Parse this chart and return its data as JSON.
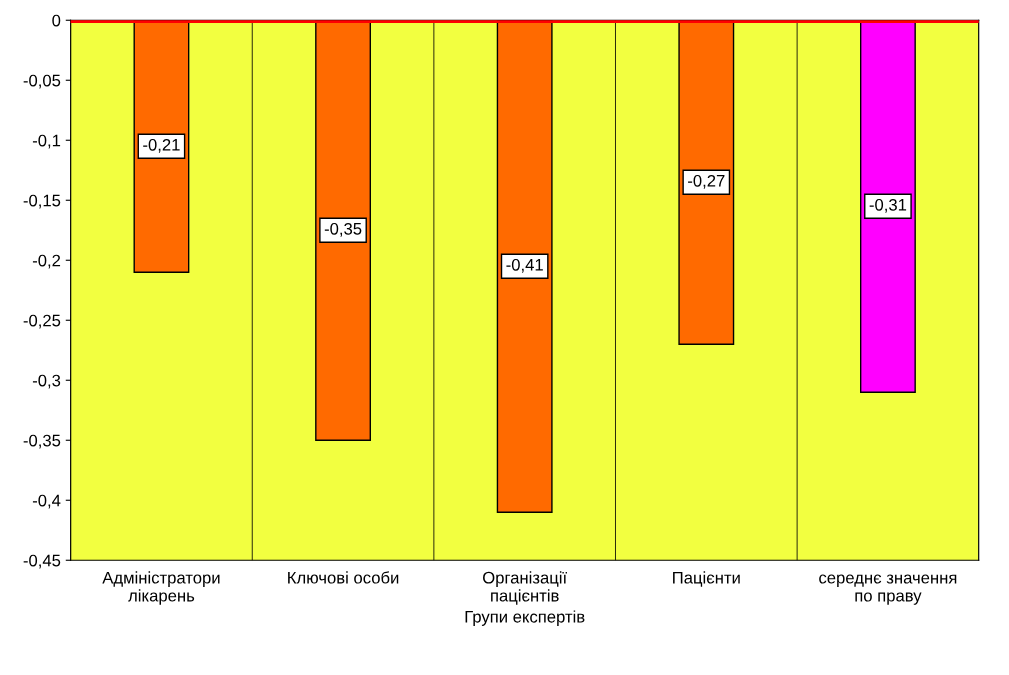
{
  "chart_data": {
    "type": "bar",
    "categories": [
      "Адміністратори лікарень",
      "Ключові особи",
      "Організації пацієнтів",
      "Пацієнти",
      "середнє значення по праву"
    ],
    "values": [
      -0.21,
      -0.35,
      -0.41,
      -0.27,
      -0.31
    ],
    "colors": [
      "#ff6a00",
      "#ff6a00",
      "#ff6a00",
      "#ff6a00",
      "#ff00ff"
    ],
    "value_labels": [
      "-0,21",
      "-0,35",
      "-0,41",
      "-0,27",
      "-0,31"
    ],
    "xlabel": "Групи експертів",
    "ylim": [
      -0.45,
      0
    ],
    "yticks": [
      0,
      {
        "value": -0.05,
        "label": "-0,05"
      },
      {
        "value": -0.1,
        "label": "-0,1"
      },
      {
        "value": -0.15,
        "label": "-0,15"
      },
      {
        "value": -0.2,
        "label": "-0,2"
      },
      {
        "value": -0.25,
        "label": "-0,25"
      },
      {
        "value": -0.3,
        "label": "-0,3"
      },
      {
        "value": -0.35,
        "label": "-0,35"
      },
      {
        "value": -0.4,
        "label": "-0,4"
      },
      {
        "value": -0.45,
        "label": "-0,45"
      }
    ],
    "ref_lines": [
      {
        "axis": "y",
        "value": 0,
        "color": "#ff0000"
      }
    ],
    "grid": false
  }
}
